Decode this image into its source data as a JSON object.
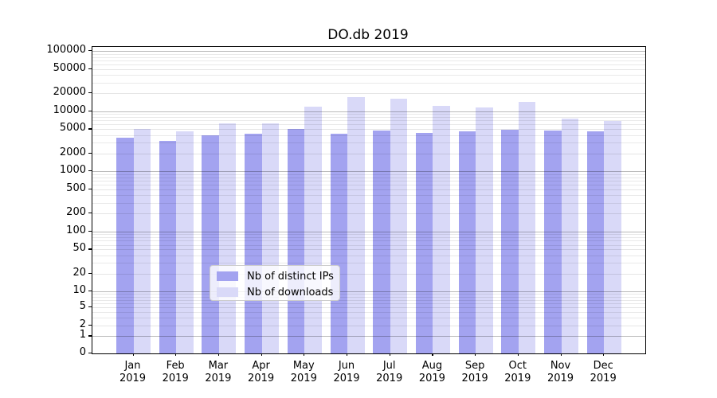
{
  "chart_data": {
    "type": "bar",
    "title": "DO.db 2019",
    "categories": [
      "Jan",
      "Feb",
      "Mar",
      "Apr",
      "May",
      "Jun",
      "Jul",
      "Aug",
      "Sep",
      "Oct",
      "Nov",
      "Dec"
    ],
    "year_label": "2019",
    "series": [
      {
        "name": "Nb of distinct IPs",
        "color": "#a3a3f0",
        "values": [
          3600,
          3200,
          4000,
          4200,
          5000,
          4200,
          4800,
          4300,
          4600,
          4850,
          4750,
          4650
        ]
      },
      {
        "name": "Nb of downloads",
        "color": "#d9d9f8",
        "values": [
          5100,
          4600,
          6200,
          6300,
          11800,
          17400,
          16000,
          12400,
          11400,
          14200,
          7500,
          6800
        ]
      }
    ],
    "yscale": "symlog",
    "ylim": [
      0,
      100000
    ],
    "yticks": [
      0,
      1,
      2,
      5,
      10,
      20,
      50,
      100,
      200,
      500,
      1000,
      2000,
      5000,
      10000,
      20000,
      50000,
      100000
    ],
    "grid": "both",
    "legend_position": "lower-center",
    "axis_color": "#000000",
    "background_color": "#ffffff"
  }
}
